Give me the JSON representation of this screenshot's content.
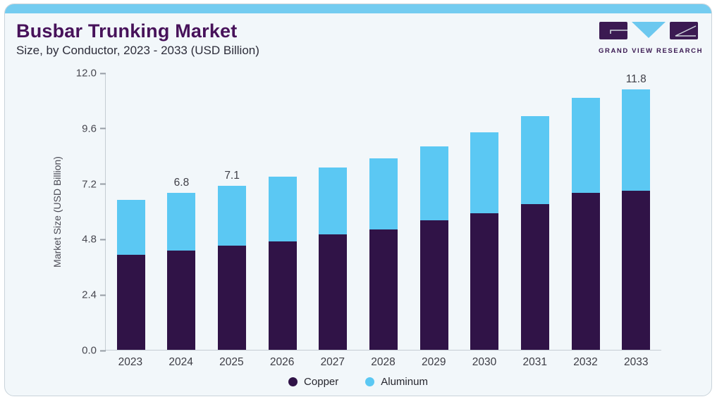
{
  "header": {
    "title": "Busbar Trunking Market",
    "subtitle": "Size, by Conductor, 2023 - 2033 (USD Billion)"
  },
  "brand": {
    "logo_text": "GRAND VIEW RESEARCH"
  },
  "colors": {
    "copper": "#301347",
    "aluminum": "#5bc8f3",
    "top_band": "#74ccf0",
    "card_background": "#f2f7fa",
    "card_border": "#c9d3da",
    "title_text": "#47125a",
    "axis_text": "#47474f",
    "axis_line": "#c5cdd3",
    "logo_purple": "#3b1a52",
    "logo_blue": "#6cc8ef"
  },
  "chart_data": {
    "type": "bar",
    "stacked": true,
    "title": "Busbar Trunking Market",
    "subtitle": "Size, by Conductor, 2023 - 2033 (USD Billion)",
    "xlabel": "",
    "ylabel": "Market Size (USD Billion)",
    "ylim": [
      0,
      12
    ],
    "ytick_labels": [
      "12.0",
      "9.6",
      "7.2",
      "4.8",
      "2.4",
      "0.0"
    ],
    "grid": false,
    "legend_position": "bottom",
    "categories": [
      "2023",
      "2024",
      "2025",
      "2026",
      "2027",
      "2028",
      "2029",
      "2030",
      "2031",
      "2032",
      "2033"
    ],
    "series": [
      {
        "name": "Copper",
        "color": "#301347",
        "values": [
          4.1,
          4.3,
          4.5,
          4.7,
          5.0,
          5.2,
          5.6,
          5.9,
          6.3,
          6.8,
          7.2
        ]
      },
      {
        "name": "Aluminum",
        "color": "#5bc8f3",
        "values": [
          2.4,
          2.5,
          2.6,
          2.8,
          2.9,
          3.1,
          3.2,
          3.5,
          3.8,
          4.1,
          4.6
        ]
      }
    ],
    "totals": [
      6.5,
      6.8,
      7.1,
      7.5,
      7.9,
      8.3,
      8.8,
      9.4,
      10.1,
      10.9,
      11.8
    ],
    "bar_value_labels": [
      "",
      "6.8",
      "7.1",
      "",
      "",
      "",
      "",
      "",
      "",
      "",
      "11.8"
    ]
  }
}
